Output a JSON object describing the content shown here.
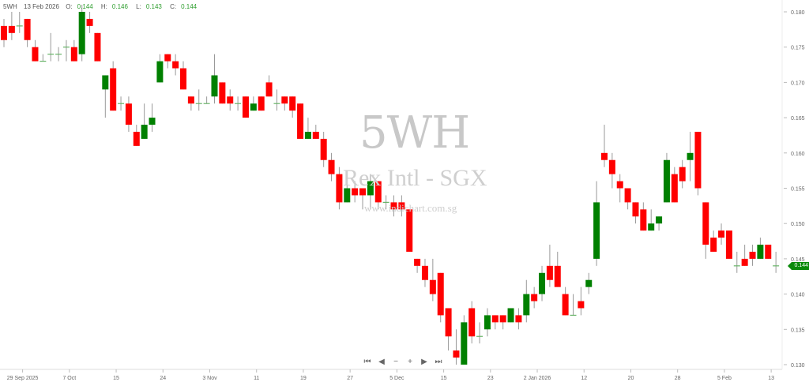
{
  "header": {
    "symbol": "5WH",
    "date": "13 Feb 2026",
    "o_label": "O:",
    "o": "0.144",
    "h_label": "H:",
    "h": "0.146",
    "l_label": "L:",
    "l": "0.143",
    "c_label": "C:",
    "c": "0.144"
  },
  "watermark": {
    "code": "5WH",
    "name": "Rex Intl - SGX",
    "site": "www.indichart.com.sg"
  },
  "last_price": "0.144",
  "colors": {
    "up": "#008000",
    "down": "#ff0000",
    "wick": "#999999",
    "badge": "#0a8a0a"
  },
  "nav_icons": [
    "first-icon",
    "prev-icon",
    "zoom-out-icon",
    "zoom-in-icon",
    "next-icon",
    "last-icon"
  ],
  "chart_data": {
    "type": "candlestick",
    "ylim": [
      0.13,
      0.18
    ],
    "y_ticks": [
      "0.130",
      "0.135",
      "0.140",
      "0.145",
      "0.150",
      "0.155",
      "0.160",
      "0.165",
      "0.170",
      "0.175",
      "0.180"
    ],
    "x_ticks": [
      {
        "index": 3,
        "label": "29 Sep 2025"
      },
      {
        "index": 9,
        "label": "7 Oct"
      },
      {
        "index": 15,
        "label": "15"
      },
      {
        "index": 21,
        "label": "24"
      },
      {
        "index": 27,
        "label": "3 Nov"
      },
      {
        "index": 33,
        "label": "11"
      },
      {
        "index": 39,
        "label": "19"
      },
      {
        "index": 45,
        "label": "27"
      },
      {
        "index": 51,
        "label": "5 Dec"
      },
      {
        "index": 57,
        "label": "15"
      },
      {
        "index": 63,
        "label": "23"
      },
      {
        "index": 69,
        "label": "2 Jan 2026"
      },
      {
        "index": 75,
        "label": "12"
      },
      {
        "index": 81,
        "label": "20"
      },
      {
        "index": 87,
        "label": "28"
      },
      {
        "index": 93,
        "label": "5 Feb"
      },
      {
        "index": 99,
        "label": "13"
      }
    ],
    "ohlc": [
      [
        0.178,
        0.179,
        0.175,
        0.176
      ],
      [
        0.178,
        0.18,
        0.176,
        0.177
      ],
      [
        0.178,
        0.18,
        0.177,
        0.178
      ],
      [
        0.179,
        0.179,
        0.175,
        0.176
      ],
      [
        0.175,
        0.176,
        0.173,
        0.173
      ],
      [
        0.173,
        0.174,
        0.173,
        0.173
      ],
      [
        0.174,
        0.177,
        0.173,
        0.174
      ],
      [
        0.174,
        0.175,
        0.173,
        0.174
      ],
      [
        0.175,
        0.176,
        0.173,
        0.175
      ],
      [
        0.175,
        0.176,
        0.173,
        0.173
      ],
      [
        0.174,
        0.181,
        0.173,
        0.18
      ],
      [
        0.179,
        0.18,
        0.177,
        0.178
      ],
      [
        0.177,
        0.177,
        0.173,
        0.173
      ],
      [
        0.169,
        0.171,
        0.165,
        0.171
      ],
      [
        0.172,
        0.173,
        0.166,
        0.166
      ],
      [
        0.167,
        0.168,
        0.166,
        0.167
      ],
      [
        0.167,
        0.168,
        0.163,
        0.164
      ],
      [
        0.163,
        0.164,
        0.161,
        0.161
      ],
      [
        0.162,
        0.167,
        0.162,
        0.164
      ],
      [
        0.164,
        0.167,
        0.163,
        0.165
      ],
      [
        0.17,
        0.174,
        0.17,
        0.173
      ],
      [
        0.174,
        0.174,
        0.172,
        0.173
      ],
      [
        0.173,
        0.174,
        0.171,
        0.172
      ],
      [
        0.172,
        0.173,
        0.169,
        0.169
      ],
      [
        0.168,
        0.168,
        0.166,
        0.167
      ],
      [
        0.167,
        0.169,
        0.166,
        0.167
      ],
      [
        0.167,
        0.168,
        0.167,
        0.167
      ],
      [
        0.168,
        0.174,
        0.167,
        0.171
      ],
      [
        0.17,
        0.17,
        0.167,
        0.167
      ],
      [
        0.168,
        0.169,
        0.166,
        0.167
      ],
      [
        0.167,
        0.168,
        0.166,
        0.167
      ],
      [
        0.168,
        0.168,
        0.165,
        0.165
      ],
      [
        0.166,
        0.168,
        0.166,
        0.167
      ],
      [
        0.168,
        0.168,
        0.166,
        0.166
      ],
      [
        0.17,
        0.171,
        0.168,
        0.168
      ],
      [
        0.167,
        0.169,
        0.166,
        0.167
      ],
      [
        0.168,
        0.168,
        0.166,
        0.167
      ],
      [
        0.168,
        0.168,
        0.165,
        0.166
      ],
      [
        0.167,
        0.167,
        0.162,
        0.162
      ],
      [
        0.162,
        0.165,
        0.162,
        0.163
      ],
      [
        0.163,
        0.164,
        0.162,
        0.162
      ],
      [
        0.162,
        0.163,
        0.158,
        0.159
      ],
      [
        0.159,
        0.16,
        0.156,
        0.157
      ],
      [
        0.157,
        0.158,
        0.152,
        0.153
      ],
      [
        0.153,
        0.156,
        0.153,
        0.155
      ],
      [
        0.155,
        0.156,
        0.153,
        0.154
      ],
      [
        0.155,
        0.155,
        0.152,
        0.154
      ],
      [
        0.154,
        0.157,
        0.152,
        0.156
      ],
      [
        0.156,
        0.156,
        0.152,
        0.153
      ],
      [
        0.153,
        0.154,
        0.152,
        0.153
      ],
      [
        0.153,
        0.154,
        0.151,
        0.152
      ],
      [
        0.153,
        0.154,
        0.151,
        0.152
      ],
      [
        0.152,
        0.152,
        0.146,
        0.146
      ],
      [
        0.145,
        0.145,
        0.143,
        0.144
      ],
      [
        0.144,
        0.145,
        0.141,
        0.142
      ],
      [
        0.142,
        0.145,
        0.139,
        0.14
      ],
      [
        0.143,
        0.143,
        0.136,
        0.137
      ],
      [
        0.138,
        0.138,
        0.132,
        0.134
      ],
      [
        0.132,
        0.135,
        0.13,
        0.131
      ],
      [
        0.13,
        0.137,
        0.13,
        0.136
      ],
      [
        0.138,
        0.139,
        0.133,
        0.134
      ],
      [
        0.134,
        0.136,
        0.133,
        0.134
      ],
      [
        0.135,
        0.138,
        0.134,
        0.137
      ],
      [
        0.137,
        0.137,
        0.135,
        0.136
      ],
      [
        0.137,
        0.137,
        0.135,
        0.136
      ],
      [
        0.136,
        0.138,
        0.136,
        0.138
      ],
      [
        0.137,
        0.138,
        0.135,
        0.136
      ],
      [
        0.137,
        0.142,
        0.136,
        0.14
      ],
      [
        0.14,
        0.141,
        0.138,
        0.139
      ],
      [
        0.14,
        0.144,
        0.139,
        0.143
      ],
      [
        0.144,
        0.147,
        0.141,
        0.142
      ],
      [
        0.144,
        0.146,
        0.141,
        0.141
      ],
      [
        0.14,
        0.141,
        0.137,
        0.137
      ],
      [
        0.137,
        0.14,
        0.137,
        0.137
      ],
      [
        0.139,
        0.141,
        0.137,
        0.138
      ],
      [
        0.141,
        0.143,
        0.14,
        0.142
      ],
      [
        0.145,
        0.156,
        0.144,
        0.153
      ],
      [
        0.16,
        0.164,
        0.158,
        0.159
      ],
      [
        0.159,
        0.16,
        0.155,
        0.157
      ],
      [
        0.156,
        0.157,
        0.153,
        0.155
      ],
      [
        0.155,
        0.155,
        0.152,
        0.153
      ],
      [
        0.153,
        0.153,
        0.15,
        0.151
      ],
      [
        0.152,
        0.153,
        0.149,
        0.149
      ],
      [
        0.149,
        0.152,
        0.149,
        0.15
      ],
      [
        0.15,
        0.151,
        0.149,
        0.151
      ],
      [
        0.153,
        0.16,
        0.153,
        0.159
      ],
      [
        0.157,
        0.158,
        0.153,
        0.153
      ],
      [
        0.158,
        0.159,
        0.155,
        0.156
      ],
      [
        0.159,
        0.163,
        0.156,
        0.16
      ],
      [
        0.163,
        0.163,
        0.154,
        0.155
      ],
      [
        0.153,
        0.153,
        0.145,
        0.147
      ],
      [
        0.148,
        0.149,
        0.146,
        0.146
      ],
      [
        0.149,
        0.15,
        0.147,
        0.148
      ],
      [
        0.149,
        0.149,
        0.145,
        0.145
      ],
      [
        0.144,
        0.146,
        0.143,
        0.144
      ],
      [
        0.145,
        0.147,
        0.144,
        0.144
      ],
      [
        0.146,
        0.147,
        0.144,
        0.145
      ],
      [
        0.145,
        0.148,
        0.145,
        0.147
      ],
      [
        0.147,
        0.147,
        0.145,
        0.145
      ],
      [
        0.144,
        0.146,
        0.143,
        0.144
      ]
    ]
  }
}
